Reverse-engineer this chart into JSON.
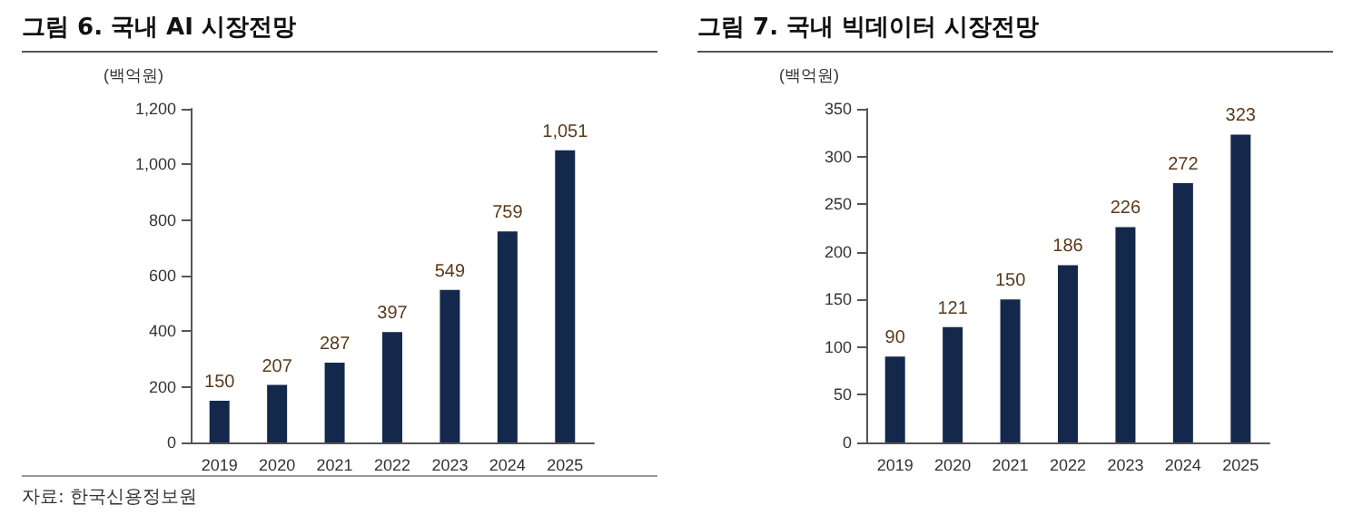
{
  "chart_data": [
    {
      "type": "bar",
      "title": "그림 6. 국내 AI 시장전망",
      "ylabel": "(백억원)",
      "categories": [
        "2019",
        "2020",
        "2021",
        "2022",
        "2023",
        "2024",
        "2025"
      ],
      "values": [
        150,
        207,
        287,
        397,
        549,
        759,
        1051
      ],
      "color": "#14284b",
      "value_labels": [
        "150",
        "207",
        "287",
        "397",
        "549",
        "759",
        "1,051"
      ],
      "ylim": [
        0,
        1200
      ],
      "yticks": [
        0,
        200,
        400,
        600,
        800,
        {
          "value": 1000,
          "label": "1,000"
        },
        {
          "value": 1200,
          "label": "1,200"
        }
      ],
      "grid": false,
      "annotations": [
        "자료: 한국신용정보원"
      ]
    },
    {
      "type": "bar",
      "title": "그림 7. 국내 빅데이터 시장전망",
      "ylabel": "(백억원)",
      "categories": [
        "2019",
        "2020",
        "2021",
        "2022",
        "2023",
        "2024",
        "2025"
      ],
      "values": [
        90,
        121,
        150,
        186,
        226,
        272,
        323
      ],
      "color": "#14284b",
      "data_labels": true,
      "ylim": [
        0,
        350
      ],
      "yticks": [
        0,
        50,
        100,
        150,
        200,
        250,
        300,
        350
      ],
      "grid": false
    }
  ]
}
